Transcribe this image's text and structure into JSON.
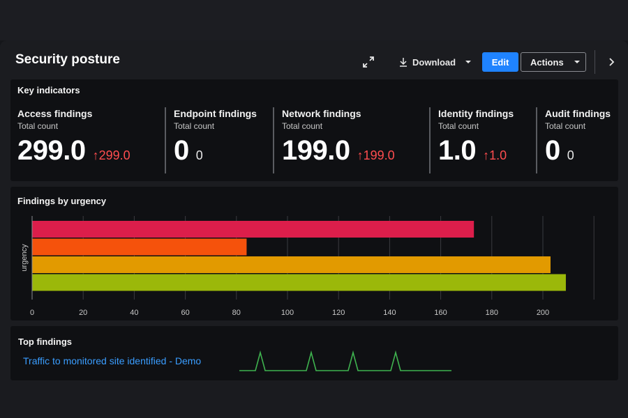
{
  "header": {
    "title": "Security posture",
    "download_label": "Download",
    "edit_label": "Edit",
    "actions_label": "Actions"
  },
  "key_indicators": {
    "title": "Key indicators",
    "items": [
      {
        "name": "Access findings",
        "sub": "Total count",
        "value": "299.0",
        "delta": "299.0",
        "trend": "up"
      },
      {
        "name": "Endpoint findings",
        "sub": "Total count",
        "value": "0",
        "delta": "0",
        "trend": "none"
      },
      {
        "name": "Network findings",
        "sub": "Total count",
        "value": "199.0",
        "delta": "199.0",
        "trend": "up"
      },
      {
        "name": "Identity findings",
        "sub": "Total count",
        "value": "1.0",
        "delta": "1.0",
        "trend": "up"
      },
      {
        "name": "Audit findings",
        "sub": "Total count",
        "value": "0",
        "delta": "0",
        "trend": "none"
      }
    ]
  },
  "urgency_chart": {
    "title": "Findings by urgency"
  },
  "chart_data": {
    "type": "bar",
    "orientation": "horizontal",
    "title": "Findings by urgency",
    "ylabel": "urgency",
    "xlabel": "",
    "xlim": [
      0,
      220
    ],
    "xticks": [
      0,
      20,
      40,
      60,
      80,
      100,
      120,
      140,
      160,
      180,
      200
    ],
    "values": [
      173,
      84,
      203,
      209
    ],
    "colors": [
      "#dc1e4b",
      "#f5520c",
      "#e29a00",
      "#9bb80a"
    ],
    "grid": true
  },
  "top_findings": {
    "title": "Top findings",
    "items": [
      {
        "label": "Traffic to monitored site identified - Demo",
        "spark_color": "#3fb34f"
      }
    ]
  },
  "icons": [
    "expand-icon",
    "download-icon",
    "caret-down-icon",
    "chevron-right-icon",
    "arrow-up-icon"
  ]
}
